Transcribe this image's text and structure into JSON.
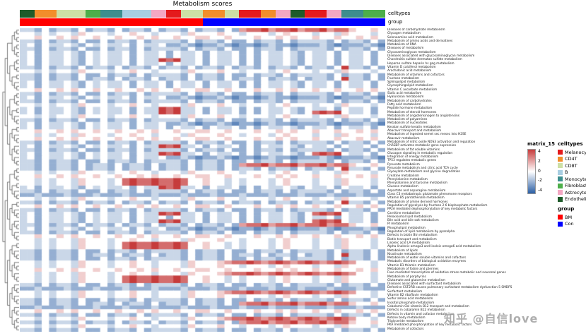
{
  "title": "Metabolism scores",
  "watermark": "知乎 @自信love",
  "annotations": {
    "celltypes_label": "celltypes",
    "group_label": "group",
    "celltypes_bar": [
      {
        "celltype": "Endothelial",
        "cols": 2
      },
      {
        "celltype": "CD4T",
        "cols": 3
      },
      {
        "celltype": "CD8T",
        "cols": 4
      },
      {
        "celltype": "Fibroblasts",
        "cols": 2
      },
      {
        "celltype": "Monocytes",
        "cols": 3
      },
      {
        "celltype": "B",
        "cols": 4
      },
      {
        "celltype": "Astrocytes",
        "cols": 2
      },
      {
        "celltype": "Melanocytes",
        "cols": 2
      },
      {
        "celltype": "CD8T",
        "cols": 3
      },
      {
        "celltype": "CD4T",
        "cols": 3
      },
      {
        "celltype": "CD8T",
        "cols": 2
      },
      {
        "celltype": "Melanocytes",
        "cols": 3
      },
      {
        "celltype": "CD4T",
        "cols": 2
      },
      {
        "celltype": "Astrocytes",
        "cols": 2
      },
      {
        "celltype": "Endothelial",
        "cols": 2
      },
      {
        "celltype": "Melanocytes",
        "cols": 3
      },
      {
        "celltype": "Astrocytes",
        "cols": 2
      },
      {
        "celltype": "Monocytes",
        "cols": 3
      },
      {
        "celltype": "Fibroblasts",
        "cols": 3
      }
    ],
    "group_bar": [
      {
        "group": "BM",
        "cols": 25
      },
      {
        "group": "Con",
        "cols": 25
      }
    ]
  },
  "legends": {
    "matrix": {
      "title": "matrix_15",
      "ticks": [
        "4",
        "2",
        "0",
        "-2",
        "-4"
      ],
      "high_color": "#C63C3C",
      "mid_color": "#FFFFFF",
      "low_color": "#2B5FA4"
    },
    "celltypes": {
      "title": "celltypes",
      "items": [
        {
          "label": "Melanocytes",
          "color": "#E41A1C"
        },
        {
          "label": "CD4T",
          "color": "#F28E2B"
        },
        {
          "label": "CD8T",
          "color": "#CDE0A5"
        },
        {
          "label": "B",
          "color": "#A8CEE2"
        },
        {
          "label": "Monocytes",
          "color": "#3D8E8E"
        },
        {
          "label": "Fibroblasts",
          "color": "#4DAF4A"
        },
        {
          "label": "Astrocytes",
          "color": "#F4A7C3"
        },
        {
          "label": "Endothelial",
          "color": "#1E5B2A"
        }
      ]
    },
    "group": {
      "title": "group",
      "items": [
        {
          "label": "BM",
          "color": "#FF0000"
        },
        {
          "label": "Con",
          "color": "#0000FF"
        }
      ]
    }
  },
  "chart_data": {
    "type": "heatmap",
    "title": "Metabolism scores",
    "n_cols": 50,
    "value_scale": {
      "min": -4,
      "max": 4,
      "encoding": "each pattern char is a digit 0-8; cell value = digit - 4"
    },
    "colorscale": {
      "low": "#2B5FA4",
      "mid": "#FFFFFF",
      "high": "#C63C3C"
    },
    "legend_position": "right",
    "row_labels": [
      "Diseases of carbohydrate metabolism",
      "Glycogen metabolism",
      "Selenoamino acid metabolism",
      "Metabolism of amino acids and derivatives",
      "Metabolism of RNA",
      "Diseases of metabolism",
      "Glycosaminoglycan metabolism",
      "Diseases associated with glycosaminoglycan metabolism",
      "Chondroitin sulfate dermatan sulfate metabolism",
      "Heparan sulfate heparin hs gag metabolism",
      "Vitamin D calciferol metabolism",
      "Arachidonic acid metabolism",
      "Metabolism of vitamins and cofactors",
      "Fructose metabolism",
      "Sphingolipid metabolism",
      "Glycosphingolipid metabolism",
      "Vitamin C ascorbate metabolism",
      "Sialic acid metabolism",
      "Hyaluronan metabolism",
      "Metabolism of carbohydrates",
      "Fatty acid metabolism",
      "Peptide hormone metabolism",
      "Metabolism of steroid hormones",
      "Metabolism of angiotensinogen to angiotensins",
      "Metabolism of polyamines",
      "Metabolism of nucleotides",
      "Keratan sulfate keratin metabolism",
      "Abacavir transport and metabolism",
      "Metabolism of ingested semet sec mesec into H2SE",
      "Abacavir metabolism",
      "Metabolism of nitric oxide NOS3 activation and regulation",
      "ChREBP activates metabolic gene expression",
      "Metabolism of fat soluble vitamins",
      "Glucagon signaling in metabolic regulation",
      "Integration of energy metabolism",
      "TP53 regulates metabolic genes",
      "Pyruvate metabolism",
      "Pyruvate metabolism and citric acid TCA cycle",
      "Glyoxylate metabolism and glycine degradation",
      "Creatine metabolism",
      "Phenylalanine metabolism",
      "Phenylalanine and tyrosine metabolism",
      "Glucose metabolism",
      "Aspartate and asparagine metabolism",
      "Class C3 metabotropic glutamate pheromone receptors",
      "Vitamin B5 pantothenate metabolism",
      "Metabolism of amine derived hormones",
      "Regulation of glycolysis by fructose 2 6 bisphosphate metabolism",
      "PP2A mediated dephosphorylation of key metabolic factors",
      "Carnitine metabolism",
      "Peroxisomal lipid metabolism",
      "Bile acid and bile salt metabolism",
      "PI metabolism",
      "Phospholipid metabolism",
      "Regulation of lipid metabolism by pparalpha",
      "Defects in biotin Btn metabolism",
      "Biotin transport and metabolism",
      "Linoleic acid LA metabolism",
      "Alpha linolenic omega3 and linoleic omega6 acid metabolism",
      "Metabolism of lipids",
      "Nicotinate metabolism",
      "Metabolism of water soluble vitamins and cofactors",
      "Metabolic disorders of biological oxidation enzymes",
      "Vitamin B1 thiamin metabolism",
      "Metabolism of folate and pterines",
      "Foxo mediated transcription of oxidative stress metabolic and neuronal genes",
      "Metabolism of porphyrins",
      "Glutamate and glutamine metabolism",
      "Diseases associated with surfactant metabolism",
      "Defective CSF2RB causes pulmonary surfactant metabolism dysfunction 5 SMDP5",
      "Surfactant metabolism",
      "Vitamin B2 riboflavin metabolism",
      "Sulfur amino acid metabolism",
      "Inositol phosphate metabolism",
      "Cobalamin Cbl vitamin B12 transport and metabolism",
      "Defects in cobalamin B12 metabolism",
      "Defects in vitamin and cofactor metabolism",
      "Ketone body metabolism",
      "Triglyceride metabolism",
      "PKA mediated phosphorylation of key metabolic factors",
      "Metabolism of cofactors"
    ],
    "patterns": {
      "P1": [
        "3424334324",
        "3433424334",
        "2433424334",
        "2424334324",
        "3342433424"
      ],
      "P2": [
        "4434344354",
        "4434454434",
        "4435444544",
        "3444345444",
        "3443544434"
      ],
      "P3": [
        "3324233242",
        "2423324233",
        "3324233242",
        "2423324233",
        "3324233242"
      ],
      "P4": [
        "2232223222",
        "3222322232",
        "2232223222",
        "3222322232",
        "2232223222"
      ],
      "P5": [
        "3424334324",
        "3433424338",
        "7833424334",
        "2424334324",
        "3342433424"
      ],
      "P6": [
        "3424334324",
        "3433424338",
        "7833424334",
        "2424334324",
        "7878433424"
      ],
      "P7": [
        "3424334324",
        "3433424334",
        "2232122321",
        "2212322122",
        "2321222321"
      ],
      "P8": [
        "3324233242",
        "3324233242",
        "3324233242",
        "6778677867",
        "7867754454"
      ],
      "P9": [
        "4434344354",
        "4434787787",
        "7874454434",
        "3444345444",
        "3443544434"
      ],
      "P10": [
        "4454454544",
        "5445445454",
        "4544554454",
        "4454454544",
        "5445445454"
      ],
      "P11": [
        "3324233242",
        "3324233242",
        "3324233242",
        "3324233242",
        "3324833242"
      ],
      "P12": [
        "4434344354",
        "4434454434",
        "4435444567",
        "7876787678",
        "7678764434"
      ]
    },
    "row_patterns": [
      "P8",
      "P2",
      "P10",
      "P3",
      "P7",
      "P3",
      "P1",
      "P1",
      "P5",
      "P1",
      "P11",
      "P2",
      "P3",
      "P11",
      "P1",
      "P1",
      "P10",
      "P3",
      "P7",
      "P3",
      "P2",
      "P5",
      "P6",
      "P2",
      "P3",
      "P7",
      "P1",
      "P10",
      "P2",
      "P10",
      "P3",
      "P5",
      "P3",
      "P6",
      "P7",
      "P3",
      "P8",
      "P11",
      "P2",
      "P10",
      "P9",
      "P9",
      "P5",
      "P3",
      "P4",
      "P2",
      "P11",
      "P10",
      "P3",
      "P6",
      "P1",
      "P6",
      "P8",
      "P7",
      "P3",
      "P10",
      "P2",
      "P9",
      "P9",
      "P3",
      "P11",
      "P3",
      "P12",
      "P2",
      "P10",
      "P12",
      "P9",
      "P9",
      "P3",
      "P4",
      "P12",
      "P2",
      "P3",
      "P8",
      "P4",
      "P10",
      "P3",
      "P12",
      "P8",
      "P2",
      "P3"
    ]
  }
}
